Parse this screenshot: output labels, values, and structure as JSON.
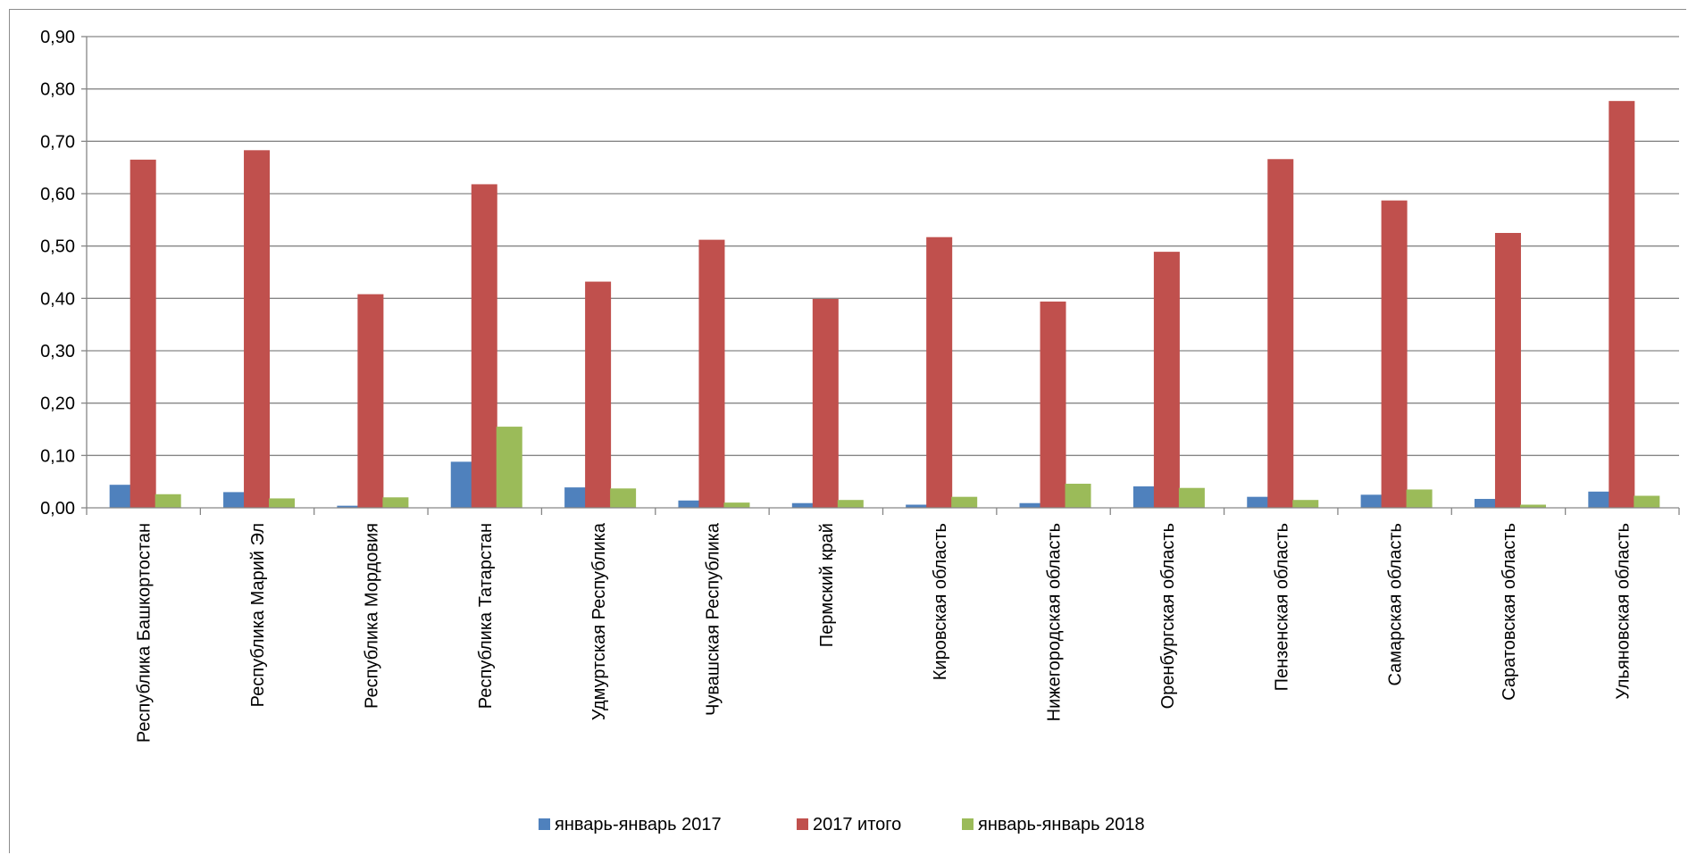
{
  "chart_data": {
    "type": "bar",
    "title": "",
    "xlabel": "",
    "ylabel": "",
    "ylim": [
      0,
      0.9
    ],
    "yticks": [
      "0,00",
      "0,10",
      "0,20",
      "0,30",
      "0,40",
      "0,50",
      "0,60",
      "0,70",
      "0,80",
      "0,90"
    ],
    "grid": true,
    "legend_position": "bottom",
    "categories": [
      "Республика Башкортостан",
      "Республика Марий Эл",
      "Республика Мордовия",
      "Республика Татарстан",
      "Удмуртская Республика",
      "Чувашская Республика",
      "Пермский край",
      "Кировская область",
      "Нижегородская область",
      "Оренбургская область",
      "Пензенская область",
      "Самарская область",
      "Саратовская область",
      "Ульяновская область"
    ],
    "series": [
      {
        "name": "январь-январь 2017",
        "color": "#4f81bd",
        "values": [
          0.044,
          0.03,
          0.004,
          0.088,
          0.039,
          0.014,
          0.009,
          0.006,
          0.009,
          0.041,
          0.021,
          0.025,
          0.017,
          0.031
        ]
      },
      {
        "name": "2017 итого",
        "color": "#c0504d",
        "values": [
          0.665,
          0.683,
          0.408,
          0.618,
          0.432,
          0.512,
          0.399,
          0.517,
          0.394,
          0.489,
          0.666,
          0.587,
          0.525,
          0.777
        ]
      },
      {
        "name": "январь-январь 2018",
        "color": "#9bbb59",
        "values": [
          0.026,
          0.018,
          0.02,
          0.155,
          0.037,
          0.01,
          0.015,
          0.021,
          0.046,
          0.038,
          0.015,
          0.035,
          0.006,
          0.023
        ]
      }
    ]
  }
}
